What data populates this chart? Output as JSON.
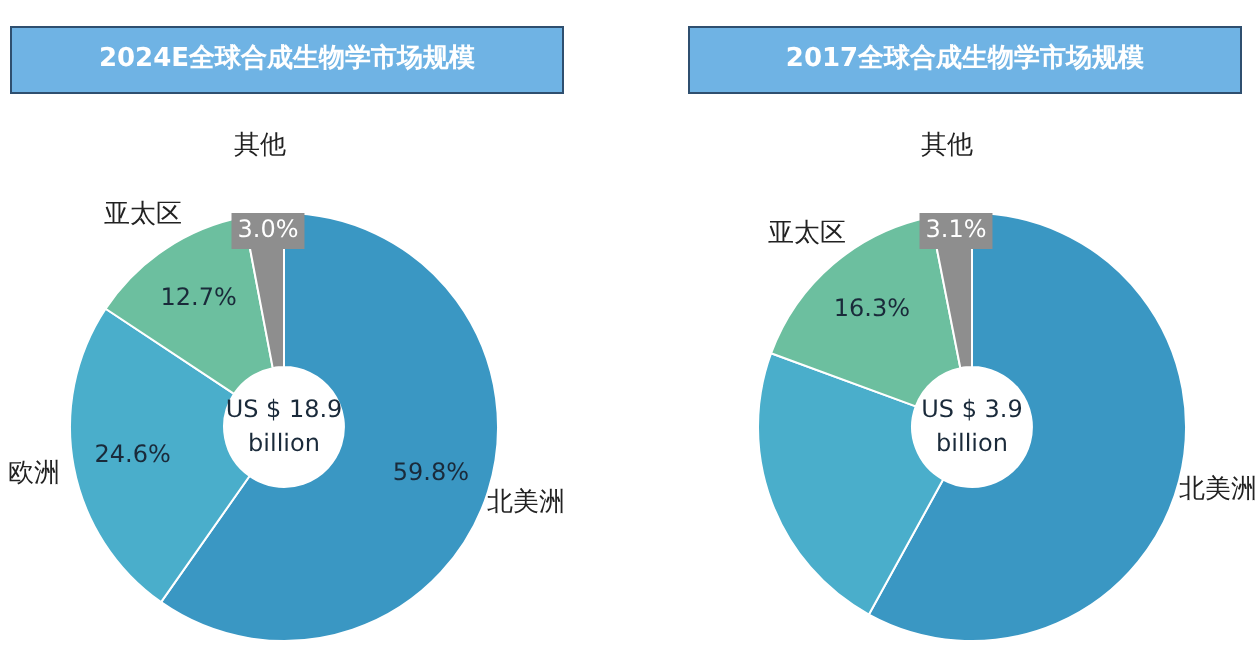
{
  "chart_data": [
    {
      "type": "donut",
      "title": "2024E全球合成生物学市场规模",
      "categories": [
        "北美洲",
        "欧洲",
        "亚太区",
        "其他"
      ],
      "values": [
        59.8,
        24.6,
        12.7,
        3.0
      ],
      "colors": [
        "#3a97c3",
        "#4aaecb",
        "#6cbf9f",
        "#8e8e8e"
      ],
      "value_labels": [
        "59.8%",
        "24.6%",
        "12.7%",
        "3.0%"
      ],
      "annotations": [
        "US $ 18.9 billion"
      ],
      "legend": false
    },
    {
      "type": "donut",
      "title": "2017全球合成生物学市场规模",
      "categories": [
        "北美洲",
        null,
        "亚太区",
        "其他"
      ],
      "values": [
        58.0,
        22.6,
        16.3,
        3.1
      ],
      "colors": [
        "#3a97c3",
        "#4aaecb",
        "#6cbf9f",
        "#8e8e8e"
      ],
      "value_labels": [
        null,
        null,
        "16.3%",
        "3.1%"
      ],
      "annotations": [
        "US $ 3.9 billion"
      ],
      "legend": false
    }
  ]
}
